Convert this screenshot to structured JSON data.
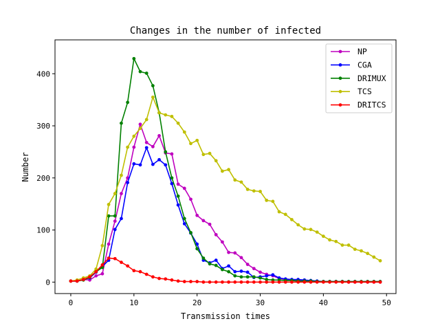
{
  "chart_data": {
    "type": "line",
    "title": "Changes in the number of infected",
    "xlabel": "Transmission times",
    "ylabel": "Number",
    "xlim": [
      -2.5,
      51.5
    ],
    "ylim": [
      -22,
      465
    ],
    "xticks": [
      0,
      10,
      20,
      30,
      40,
      50
    ],
    "yticks": [
      0,
      100,
      200,
      300,
      400
    ],
    "grid": false,
    "legend_position": "top-right",
    "x": [
      0,
      1,
      2,
      3,
      4,
      5,
      6,
      7,
      8,
      9,
      10,
      11,
      12,
      13,
      14,
      15,
      16,
      17,
      18,
      19,
      20,
      21,
      22,
      23,
      24,
      25,
      26,
      27,
      28,
      29,
      30,
      31,
      32,
      33,
      34,
      35,
      36,
      37,
      38,
      39,
      40,
      41,
      42,
      43,
      44,
      45,
      46,
      47,
      48,
      49
    ],
    "series": [
      {
        "name": "NP",
        "color": "#bf00bf",
        "values": [
          2,
          2,
          5,
          4,
          12,
          16,
          73,
          117,
          170,
          200,
          259,
          303,
          268,
          260,
          281,
          248,
          246,
          188,
          180,
          159,
          128,
          118,
          111,
          91,
          77,
          57,
          56,
          47,
          34,
          26,
          19,
          15,
          12,
          7,
          5,
          4,
          3,
          3,
          2,
          1,
          1,
          1,
          1,
          1,
          0,
          0,
          0,
          0,
          0,
          0
        ]
      },
      {
        "name": "CGA",
        "color": "#0000ff",
        "values": [
          2,
          2,
          5,
          8,
          19,
          30,
          42,
          101,
          122,
          191,
          227,
          225,
          258,
          226,
          235,
          225,
          189,
          148,
          112,
          94,
          73,
          42,
          37,
          42,
          26,
          31,
          20,
          21,
          19,
          9,
          10,
          12,
          14,
          8,
          6,
          5,
          5,
          4,
          3,
          2,
          1,
          1,
          1,
          1,
          1,
          1,
          1,
          1,
          1,
          1
        ]
      },
      {
        "name": "DRIMUX",
        "color": "#008000",
        "values": [
          2,
          2,
          4,
          9,
          20,
          28,
          127,
          127,
          305,
          345,
          429,
          404,
          401,
          377,
          325,
          250,
          200,
          165,
          122,
          95,
          64,
          46,
          35,
          32,
          24,
          20,
          12,
          10,
          10,
          10,
          8,
          5,
          4,
          4,
          3,
          3,
          2,
          2,
          2,
          1,
          1,
          1,
          1,
          1,
          1,
          1,
          1,
          1,
          1,
          1
        ]
      },
      {
        "name": "TCS",
        "color": "#bfbf00",
        "values": [
          2,
          4,
          8,
          12,
          25,
          70,
          149,
          170,
          205,
          259,
          280,
          295,
          312,
          355,
          325,
          321,
          318,
          305,
          288,
          266,
          272,
          245,
          247,
          233,
          213,
          216,
          196,
          192,
          178,
          175,
          174,
          157,
          155,
          135,
          130,
          120,
          110,
          102,
          101,
          96,
          88,
          81,
          78,
          71,
          71,
          63,
          60,
          55,
          48,
          41
        ]
      },
      {
        "name": "DRITCS",
        "color": "#ff0000",
        "values": [
          2,
          2,
          5,
          10,
          20,
          33,
          46,
          45,
          38,
          31,
          22,
          20,
          15,
          10,
          7,
          6,
          4,
          2,
          1,
          1,
          1,
          0,
          0,
          0,
          0,
          0,
          0,
          0,
          0,
          0,
          0,
          0,
          0,
          0,
          0,
          0,
          0,
          0,
          0,
          0,
          0,
          0,
          0,
          0,
          0,
          0,
          0,
          0,
          0,
          0
        ]
      }
    ]
  }
}
